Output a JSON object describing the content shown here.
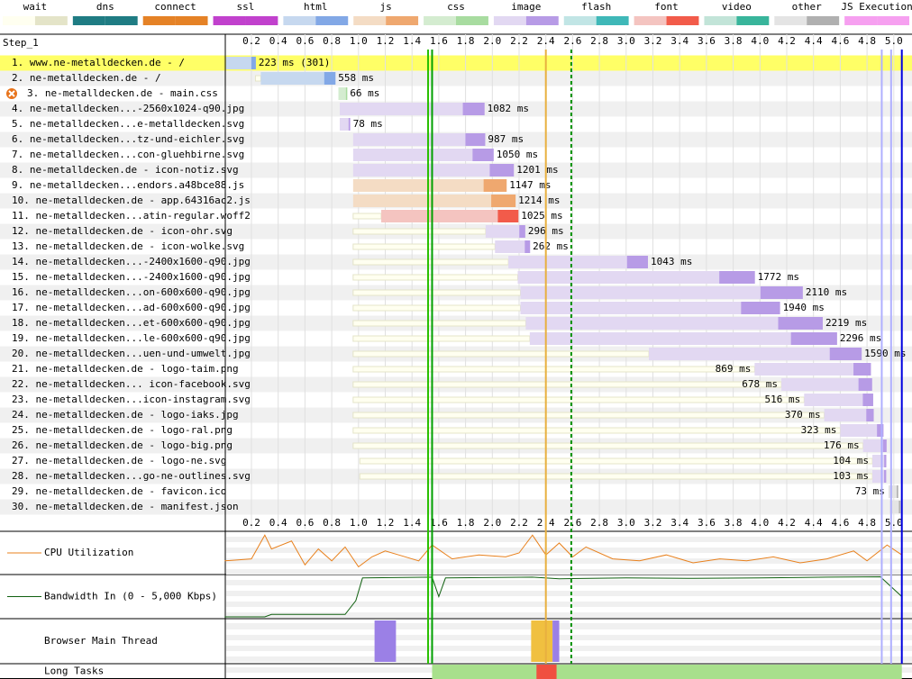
{
  "legend": [
    {
      "name": "wait",
      "colors": [
        "#fffff0",
        "#e4e4c8"
      ]
    },
    {
      "name": "dns",
      "colors": [
        "#1f7c83",
        "#1f7c83"
      ]
    },
    {
      "name": "connect",
      "colors": [
        "#e58226",
        "#e58226"
      ]
    },
    {
      "name": "ssl",
      "colors": [
        "#c141cd",
        "#c141cd"
      ]
    },
    {
      "name": "html",
      "colors": [
        "#c6d8ef",
        "#82a8e6"
      ]
    },
    {
      "name": "js",
      "colors": [
        "#f4dcc4",
        "#efa86f"
      ]
    },
    {
      "name": "css",
      "colors": [
        "#d4ecd0",
        "#a8dca0"
      ]
    },
    {
      "name": "image",
      "colors": [
        "#e2d8f2",
        "#b79be6"
      ]
    },
    {
      "name": "flash",
      "colors": [
        "#c1e5e5",
        "#3fb8b8"
      ]
    },
    {
      "name": "font",
      "colors": [
        "#f4c4c0",
        "#f25b4a"
      ]
    },
    {
      "name": "video",
      "colors": [
        "#c2e4d8",
        "#38b59b"
      ]
    },
    {
      "name": "other",
      "colors": [
        "#e4e4e4",
        "#b0b0b0"
      ]
    },
    {
      "name": "JS Execution",
      "colors": [
        "#f6a0f0",
        "#f6a0f0"
      ]
    }
  ],
  "step": "Step_1",
  "ticks": [
    0.2,
    0.4,
    0.6,
    0.8,
    {
      "value": 1,
      "label": "1.0"
    },
    1.2,
    1.4,
    1.6,
    1.8,
    {
      "value": 2,
      "label": "2.0"
    },
    2.2,
    2.4,
    2.6,
    2.8,
    {
      "value": 3,
      "label": "3.0"
    },
    3.2,
    3.4,
    3.6,
    3.8,
    {
      "value": 4,
      "label": "4.0"
    },
    4.2,
    4.4,
    4.6,
    4.8,
    {
      "value": 5,
      "label": "5.0"
    }
  ],
  "requests": [
    {
      "label": "1. www.ne-metalldecken.de - /",
      "type": "html",
      "start": 0.01,
      "duration": 223,
      "duration_label": "223 ms (301)"
    },
    {
      "label": "2. ne-metalldecken.de - /",
      "type": "html",
      "start": 0.27,
      "wait": 0.23,
      "duration": 558,
      "duration_label": "558 ms"
    },
    {
      "label": "3. ne-metalldecken.de - main.css",
      "type": "css",
      "start": 0.85,
      "duration": 66,
      "duration_label": "66 ms",
      "error": true
    },
    {
      "label": "4. ne-metalldecken...-2560x1024-q90.jpg",
      "type": "image",
      "start": 0.86,
      "duration": 1082,
      "duration_label": "1082 ms"
    },
    {
      "label": "5. ne-metalldecken...e-metalldecken.svg",
      "type": "image",
      "start": 0.86,
      "duration": 78,
      "duration_label": "78 ms"
    },
    {
      "label": "6. ne-metalldecken...tz-und-eichler.svg",
      "type": "image",
      "start": 0.96,
      "duration": 987,
      "duration_label": "987 ms"
    },
    {
      "label": "7. ne-metalldecken...con-gluehbirne.svg",
      "type": "image",
      "start": 0.96,
      "duration": 1050,
      "duration_label": "1050 ms"
    },
    {
      "label": "8. ne-metalldecken.de - icon-notiz.svg",
      "type": "image",
      "start": 0.96,
      "duration": 1201,
      "duration_label": "1201 ms"
    },
    {
      "label": "9. ne-metalldecken...endors.a48bce88.js",
      "type": "js",
      "start": 0.96,
      "duration": 1147,
      "duration_label": "1147 ms"
    },
    {
      "label": "10. ne-metalldecken.de - app.64316ac2.js",
      "type": "js",
      "start": 0.96,
      "duration": 1214,
      "duration_label": "1214 ms"
    },
    {
      "label": "11. ne-metalldecken...atin-regular.woff2",
      "type": "font",
      "start": 1.17,
      "wait": 0.96,
      "duration": 1025,
      "duration_label": "1025 ms"
    },
    {
      "label": "12. ne-metalldecken.de - icon-ohr.svg",
      "type": "image",
      "start": 1.95,
      "wait": 0.96,
      "duration": 296,
      "duration_label": "296 ms"
    },
    {
      "label": "13. ne-metalldecken.de - icon-wolke.svg",
      "type": "image",
      "start": 2.02,
      "wait": 0.96,
      "duration": 262,
      "duration_label": "262 ms"
    },
    {
      "label": "14. ne-metalldecken...-2400x1600-q90.jpg",
      "type": "image",
      "start": 2.12,
      "wait": 0.96,
      "duration": 1043,
      "duration_label": "1043 ms"
    },
    {
      "label": "15. ne-metalldecken...-2400x1600-q90.jpg",
      "type": "image",
      "start": 2.19,
      "wait": 0.96,
      "duration": 1772,
      "duration_label": "1772 ms"
    },
    {
      "label": "16. ne-metalldecken...on-600x600-q90.jpg",
      "type": "image",
      "start": 2.21,
      "wait": 0.96,
      "duration": 2110,
      "duration_label": "2110 ms"
    },
    {
      "label": "17. ne-metalldecken...ad-600x600-q90.jpg",
      "type": "image",
      "start": 2.21,
      "wait": 0.96,
      "duration": 1940,
      "duration_label": "1940 ms"
    },
    {
      "label": "18. ne-metalldecken...et-600x600-q90.jpg",
      "type": "image",
      "start": 2.25,
      "wait": 0.96,
      "duration": 2219,
      "duration_label": "2219 ms"
    },
    {
      "label": "19. ne-metalldecken...le-600x600-q90.jpg",
      "type": "image",
      "start": 2.28,
      "wait": 0.96,
      "duration": 2296,
      "duration_label": "2296 ms"
    },
    {
      "label": "20. ne-metalldecken...uen-und-umwelt.jpg",
      "type": "image",
      "start": 3.17,
      "wait": 0.96,
      "duration": 1590,
      "duration_label": "1590 ms"
    },
    {
      "label": "21. ne-metalldecken.de - logo-taim.png",
      "type": "image",
      "start": 3.96,
      "wait": 0.96,
      "duration": 869,
      "duration_label": "869 ms"
    },
    {
      "label": "22. ne-metalldecken... icon-facebook.svg",
      "type": "image",
      "start": 4.16,
      "wait": 0.96,
      "duration": 678,
      "duration_label": "678 ms"
    },
    {
      "label": "23. ne-metalldecken...icon-instagram.svg",
      "type": "image",
      "start": 4.33,
      "wait": 0.96,
      "duration": 516,
      "duration_label": "516 ms"
    },
    {
      "label": "24. ne-metalldecken.de - logo-iaks.jpg",
      "type": "image",
      "start": 4.48,
      "wait": 0.96,
      "duration": 370,
      "duration_label": "370 ms"
    },
    {
      "label": "25. ne-metalldecken.de - logo-ral.png",
      "type": "image",
      "start": 4.6,
      "wait": 0.96,
      "duration": 323,
      "duration_label": "323 ms"
    },
    {
      "label": "26. ne-metalldecken.de - logo-big.png",
      "type": "image",
      "start": 4.77,
      "wait": 0.96,
      "duration": 176,
      "duration_label": "176 ms"
    },
    {
      "label": "27. ne-metalldecken.de - logo-ne.svg",
      "type": "image",
      "start": 4.84,
      "wait": 1.01,
      "duration": 104,
      "duration_label": "104 ms"
    },
    {
      "label": "28. ne-metalldecken...go-ne-outlines.svg",
      "type": "image",
      "start": 4.84,
      "wait": 1.01,
      "duration": 103,
      "duration_label": "103 ms"
    },
    {
      "label": "29. ne-metalldecken.de - favicon.ico",
      "type": "other",
      "start": 4.96,
      "duration": 73,
      "duration_label": "73 ms"
    },
    {
      "label": "30. ne-metalldecken.de - manifest.json",
      "type": "other",
      "start": 4.97,
      "duration": 80
    }
  ],
  "markers": [
    {
      "t": 1.52,
      "color": "#28c000"
    },
    {
      "t": 1.55,
      "color": "#00a000"
    },
    {
      "t": 2.4,
      "color": "#e8b040"
    },
    {
      "t": 2.59,
      "color": "#009000",
      "dashed": true
    },
    {
      "t": 4.91,
      "color": "#b0b0ff"
    },
    {
      "t": 4.98,
      "color": "#b0b0ff"
    },
    {
      "t": 5.06,
      "color": "#0000e0"
    }
  ],
  "cpu": {
    "label": "CPU Utilization",
    "times": [
      0,
      0.2,
      0.3,
      0.35,
      0.5,
      0.6,
      0.7,
      0.8,
      0.9,
      1.0,
      1.1,
      1.2,
      1.3,
      1.45,
      1.55,
      1.7,
      1.9,
      2.1,
      2.2,
      2.3,
      2.4,
      2.5,
      2.6,
      2.7,
      2.9,
      3.1,
      3.3,
      3.5,
      3.7,
      3.9,
      4.1,
      4.3,
      4.5,
      4.7,
      4.8,
      4.95,
      5.06
    ],
    "values": [
      30,
      35,
      95,
      60,
      80,
      20,
      60,
      30,
      65,
      15,
      40,
      55,
      45,
      30,
      70,
      35,
      45,
      40,
      50,
      95,
      45,
      75,
      40,
      65,
      35,
      30,
      45,
      25,
      35,
      30,
      40,
      25,
      35,
      55,
      30,
      70,
      45
    ]
  },
  "bandwidth": {
    "label": "Bandwidth In (0 - 5,000 Kbps)",
    "max": 5000,
    "times": [
      0,
      0.3,
      0.35,
      0.9,
      0.98,
      1.03,
      1.55,
      1.6,
      1.65,
      2.3,
      2.5,
      3.0,
      3.5,
      4.0,
      4.5,
      4.9,
      5.06
    ],
    "values": [
      0,
      0,
      300,
      300,
      2000,
      4800,
      4900,
      2500,
      4800,
      4900,
      4700,
      4800,
      4750,
      4800,
      4900,
      4950,
      2500
    ]
  },
  "main_thread": {
    "label": "Browser Main Thread",
    "segments": [
      {
        "start": 1.12,
        "end": 1.28,
        "color": "#9b80e6"
      },
      {
        "start": 2.29,
        "end": 2.45,
        "color": "#f0c040"
      },
      {
        "start": 2.45,
        "end": 2.5,
        "color": "#9b80e6"
      }
    ]
  },
  "long_tasks": {
    "label": "Long Tasks",
    "segments": [
      {
        "start": 1.55,
        "end": 5.06,
        "color": "#a8e08c"
      },
      {
        "start": 2.33,
        "end": 2.48,
        "color": "#f05040"
      }
    ]
  }
}
